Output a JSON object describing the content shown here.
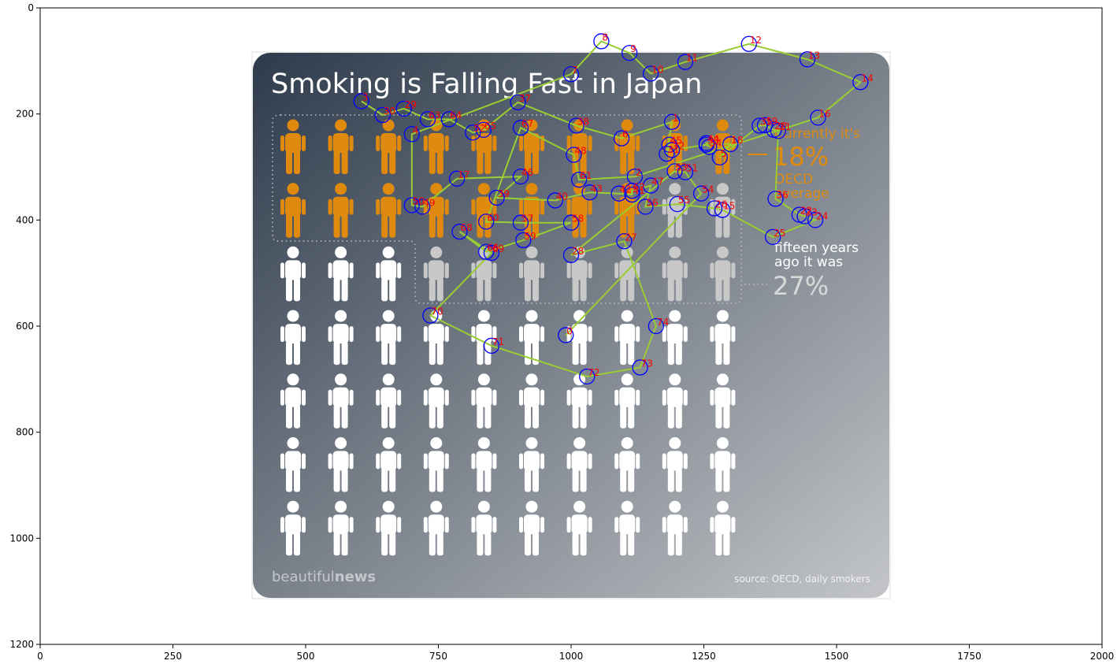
{
  "figure": {
    "x_ticks": [
      "0",
      "250",
      "500",
      "750",
      "1000",
      "1250",
      "1500",
      "1750",
      "2000"
    ],
    "y_ticks": [
      "0",
      "200",
      "400",
      "600",
      "800",
      "1000",
      "1200"
    ]
  },
  "infographic": {
    "title": "Smoking is Falling Fast in Japan",
    "current_label_1": "Currently it's",
    "current_value": "18%",
    "oecd_label_1": "OECD",
    "oecd_label_2": "average",
    "past_label_1": "fifteen years",
    "past_label_2": "ago it was",
    "past_value": "27%",
    "brand_light": "beautiful",
    "brand_bold": "news",
    "source": "source: OECD, daily smokers",
    "colors": {
      "bg_dark": "#2e3b4c",
      "bg_light": "#c3c5c8",
      "orange": "#e08a0d",
      "grey": "#c8c8c8",
      "white": "#ffffff"
    },
    "grid": {
      "columns": 10,
      "rows": 7,
      "rows_layout": [
        [
          "orange",
          "orange",
          "orange",
          "orange",
          "orange",
          "orange",
          "orange",
          "orange",
          "orange",
          "orange"
        ],
        [
          "orange",
          "orange",
          "orange",
          "orange",
          "orange",
          "orange",
          "orange",
          "orange",
          "grey",
          "grey"
        ],
        [
          "white",
          "white",
          "white",
          "grey",
          "grey",
          "grey",
          "grey",
          "grey",
          "grey",
          "grey"
        ],
        [
          "white",
          "white",
          "white",
          "white",
          "white",
          "white",
          "white",
          "white",
          "white",
          "white"
        ],
        [
          "white",
          "white",
          "white",
          "white",
          "white",
          "white",
          "white",
          "white",
          "white",
          "white"
        ],
        [
          "white",
          "white",
          "white",
          "white",
          "white",
          "white",
          "white",
          "white",
          "white",
          "white"
        ],
        [
          "white",
          "white",
          "white",
          "white",
          "white",
          "white",
          "white",
          "white",
          "white",
          "white"
        ]
      ]
    }
  },
  "chart_data": {
    "type": "scatter",
    "title": "",
    "xlabel": "",
    "ylabel": "",
    "xlim": [
      0,
      2000
    ],
    "ylim": [
      1200,
      0
    ],
    "grid": false,
    "x_tick_values": [
      0,
      250,
      500,
      750,
      1000,
      1250,
      1500,
      1750,
      2000
    ],
    "y_tick_values": [
      0,
      200,
      400,
      600,
      800,
      1000,
      1200
    ],
    "marker_color": "#0000ff",
    "label_color": "#ff0000",
    "line_color": "#9acd32",
    "points": [
      {
        "label": "0",
        "x": 990,
        "y": 617
      },
      {
        "label": "1",
        "x": 1190,
        "y": 215
      },
      {
        "label": "2",
        "x": 1120,
        "y": 318
      },
      {
        "label": "3",
        "x": 605,
        "y": 176
      },
      {
        "label": "4",
        "x": 700,
        "y": 238
      },
      {
        "label": "5",
        "x": 1280,
        "y": 282
      },
      {
        "label": "6",
        "x": 1095,
        "y": 246
      },
      {
        "label": "7",
        "x": 1000,
        "y": 125
      },
      {
        "label": "8",
        "x": 1057,
        "y": 63
      },
      {
        "label": "9",
        "x": 1110,
        "y": 85
      },
      {
        "label": "10",
        "x": 1150,
        "y": 124
      },
      {
        "label": "11",
        "x": 1215,
        "y": 102
      },
      {
        "label": "12",
        "x": 1335,
        "y": 68
      },
      {
        "label": "13",
        "x": 1445,
        "y": 97
      },
      {
        "label": "14",
        "x": 1545,
        "y": 140
      },
      {
        "label": "15",
        "x": 1285,
        "y": 381
      },
      {
        "label": "16",
        "x": 1465,
        "y": 207
      },
      {
        "label": "17",
        "x": 785,
        "y": 322
      },
      {
        "label": "18",
        "x": 1300,
        "y": 257
      },
      {
        "label": "19",
        "x": 1365,
        "y": 221
      },
      {
        "label": "20",
        "x": 1382,
        "y": 230
      },
      {
        "label": "21",
        "x": 1390,
        "y": 232
      },
      {
        "label": "22",
        "x": 1430,
        "y": 390
      },
      {
        "label": "23",
        "x": 1440,
        "y": 393
      },
      {
        "label": "24",
        "x": 1460,
        "y": 400
      },
      {
        "label": "25",
        "x": 1380,
        "y": 432
      },
      {
        "label": "26",
        "x": 1270,
        "y": 378
      },
      {
        "label": "27",
        "x": 1100,
        "y": 440
      },
      {
        "label": "28",
        "x": 1000,
        "y": 466
      },
      {
        "label": "29",
        "x": 685,
        "y": 190
      },
      {
        "label": "30",
        "x": 645,
        "y": 202
      },
      {
        "label": "31",
        "x": 1180,
        "y": 275
      },
      {
        "label": "32",
        "x": 1190,
        "y": 268
      },
      {
        "label": "33",
        "x": 1255,
        "y": 258
      },
      {
        "label": "34",
        "x": 1260,
        "y": 262
      },
      {
        "label": "35",
        "x": 1355,
        "y": 222
      },
      {
        "label": "36",
        "x": 1385,
        "y": 360
      },
      {
        "label": "37",
        "x": 900,
        "y": 178
      },
      {
        "label": "38",
        "x": 1010,
        "y": 222
      },
      {
        "label": "39",
        "x": 860,
        "y": 358
      },
      {
        "label": "40",
        "x": 970,
        "y": 363
      },
      {
        "label": "41",
        "x": 1115,
        "y": 352
      },
      {
        "label": "42",
        "x": 1090,
        "y": 350
      },
      {
        "label": "43",
        "x": 1035,
        "y": 348
      },
      {
        "label": "44",
        "x": 1255,
        "y": 255
      },
      {
        "label": "45",
        "x": 1185,
        "y": 258
      },
      {
        "label": "46",
        "x": 905,
        "y": 318
      },
      {
        "label": "47",
        "x": 1150,
        "y": 335
      },
      {
        "label": "48",
        "x": 1005,
        "y": 277
      },
      {
        "label": "49",
        "x": 720,
        "y": 375
      },
      {
        "label": "50",
        "x": 700,
        "y": 372
      },
      {
        "label": "51",
        "x": 1215,
        "y": 310
      },
      {
        "label": "52",
        "x": 815,
        "y": 235
      },
      {
        "label": "53",
        "x": 1195,
        "y": 308
      },
      {
        "label": "54",
        "x": 1245,
        "y": 350
      },
      {
        "label": "55",
        "x": 1200,
        "y": 370
      },
      {
        "label": "56",
        "x": 1140,
        "y": 375
      },
      {
        "label": "57",
        "x": 905,
        "y": 405
      },
      {
        "label": "58",
        "x": 1000,
        "y": 405
      },
      {
        "label": "59",
        "x": 910,
        "y": 438
      },
      {
        "label": "60",
        "x": 840,
        "y": 403
      },
      {
        "label": "61",
        "x": 1015,
        "y": 324
      },
      {
        "label": "62",
        "x": 1115,
        "y": 345
      },
      {
        "label": "63",
        "x": 730,
        "y": 210
      },
      {
        "label": "64",
        "x": 770,
        "y": 210
      },
      {
        "label": "65",
        "x": 835,
        "y": 230
      },
      {
        "label": "66",
        "x": 840,
        "y": 460
      },
      {
        "label": "67",
        "x": 905,
        "y": 226
      },
      {
        "label": "68",
        "x": 790,
        "y": 422
      },
      {
        "label": "69",
        "x": 850,
        "y": 462
      },
      {
        "label": "70",
        "x": 735,
        "y": 580
      },
      {
        "label": "71",
        "x": 850,
        "y": 637
      },
      {
        "label": "72",
        "x": 1030,
        "y": 695
      },
      {
        "label": "73",
        "x": 1130,
        "y": 678
      },
      {
        "label": "74",
        "x": 1160,
        "y": 600
      }
    ],
    "path": [
      3,
      30,
      29,
      63,
      64,
      52,
      65,
      37,
      38,
      6,
      1,
      31,
      45,
      32,
      33,
      34,
      44,
      18,
      5,
      35,
      19,
      20,
      21,
      36,
      22,
      23,
      24,
      25,
      15,
      26,
      55,
      56,
      47,
      62,
      41,
      42,
      43,
      40,
      39,
      46,
      17,
      49,
      50,
      4,
      7,
      8,
      9,
      10,
      11,
      12,
      13,
      14,
      16,
      2,
      61,
      48,
      67,
      60,
      57,
      58,
      59,
      66,
      68,
      69,
      70,
      71,
      72,
      73,
      74,
      27,
      28,
      53,
      51,
      54,
      0
    ]
  }
}
